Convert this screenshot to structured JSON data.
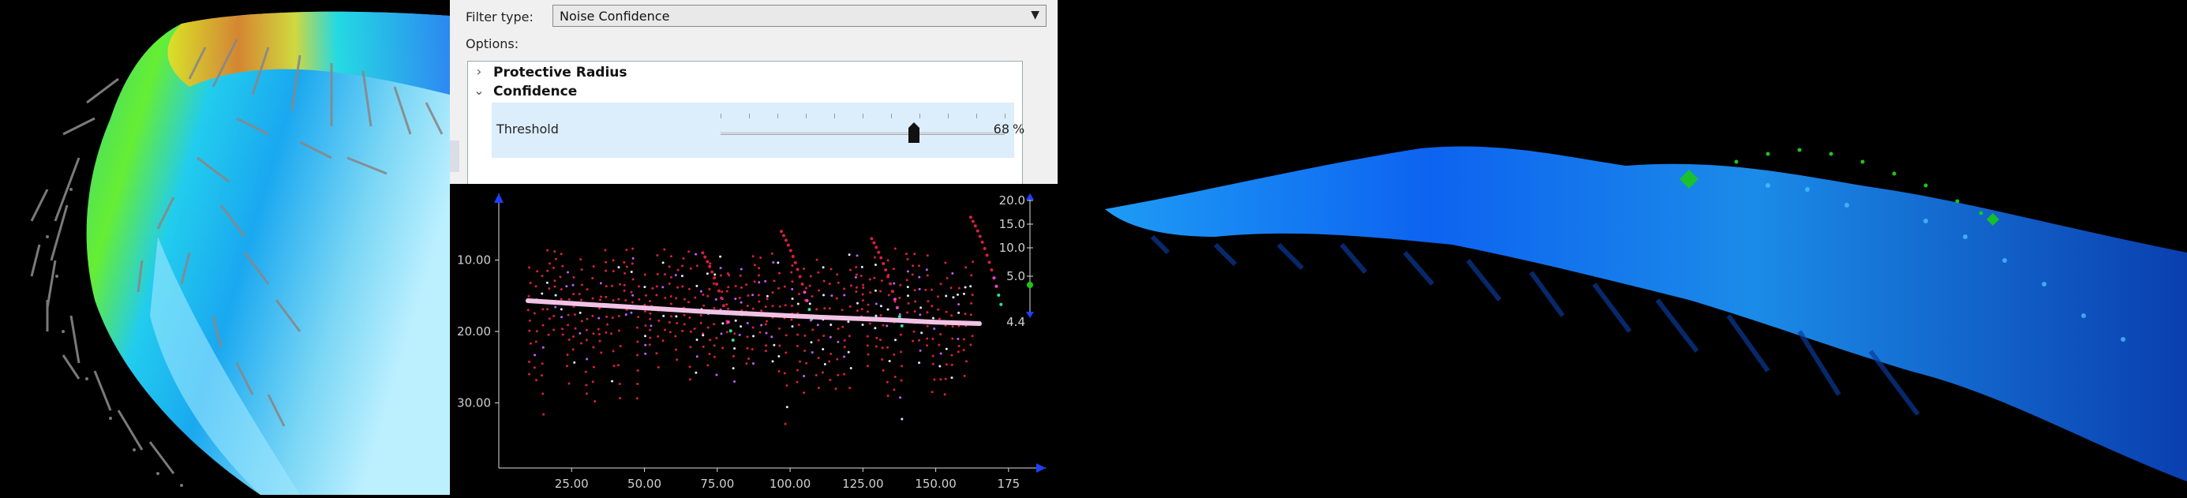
{
  "filter_panel": {
    "filter_type_label": "Filter type:",
    "filter_type_value": "Noise Confidence",
    "options_label": "Options:",
    "groups": [
      {
        "label": "Protective Radius",
        "expanded": false
      },
      {
        "label": "Confidence",
        "expanded": true
      }
    ],
    "threshold": {
      "label": "Threshold",
      "value": "68",
      "unit": "%",
      "fraction": 0.68
    }
  },
  "colors": {
    "panel_bg": "#f0f0f0",
    "selected_row": "#dceefb",
    "axis": "#1f3fff",
    "point_red": "#d8203a",
    "line_pink": "#f2c3e6",
    "marker_green": "#18c818"
  },
  "chart_data": {
    "type": "scatter",
    "x_ticks": [
      "25.00",
      "50.00",
      "75.00",
      "100.00",
      "125.00",
      "150.00",
      "175"
    ],
    "y_ticks": [
      "10.00",
      "20.00",
      "30.00"
    ],
    "xlim": [
      0,
      175
    ],
    "ylim": [
      0,
      40
    ],
    "y_inverted": true,
    "color_scale_ticks": [
      "20.0",
      "15.0",
      "10.0",
      "5.0",
      "4.4"
    ],
    "series": [
      {
        "values": [
          [
            10,
            15.7
          ],
          [
            30,
            16.2
          ],
          [
            50,
            16.7
          ],
          [
            70,
            17.2
          ],
          [
            90,
            17.6
          ],
          [
            110,
            18.0
          ],
          [
            130,
            18.3
          ],
          [
            150,
            18.7
          ],
          [
            165,
            18.9
          ]
        ]
      }
    ]
  }
}
